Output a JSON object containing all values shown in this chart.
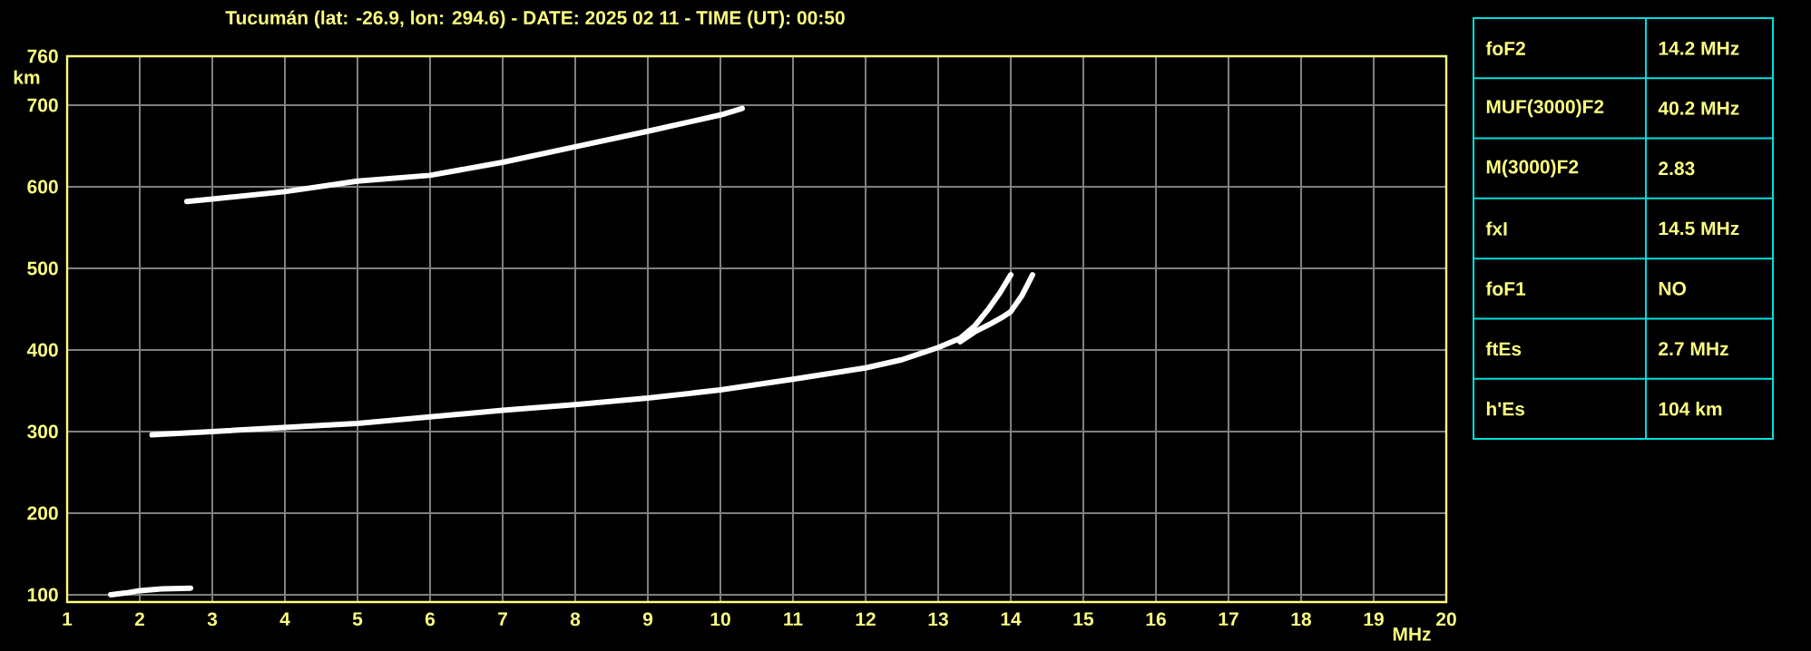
{
  "chart_data": [
    {
      "type": "line",
      "title": "Tucumán (lat: -26.9, lon: 294.6) - DATE: 2025 02 11 - TIME (UT): 00:50",
      "xlabel": "MHz",
      "ylabel": "km",
      "xlim": [
        1,
        20
      ],
      "ylim": [
        91,
        760
      ],
      "xticks": [
        1,
        2,
        3,
        4,
        5,
        6,
        7,
        8,
        9,
        10,
        11,
        12,
        13,
        14,
        15,
        16,
        17,
        18,
        19,
        20
      ],
      "yticks": [
        100,
        200,
        300,
        400,
        500,
        600,
        700,
        760
      ],
      "grid": true,
      "legend": false,
      "marker": "none",
      "line_style": "solid",
      "series": [
        {
          "color": "#ffffff",
          "x": [
            2.17,
            3,
            4,
            5,
            6,
            7,
            8,
            9,
            10,
            11,
            12,
            12.5,
            13,
            13.3,
            13.5,
            13.7,
            13.85,
            14.0
          ],
          "values": [
            296,
            300,
            305,
            310,
            318,
            326,
            333,
            341,
            351,
            364,
            378,
            388,
            403,
            414,
            429,
            451,
            470,
            492
          ]
        },
        {
          "color": "#ffffff",
          "x": [
            13.3,
            13.5,
            13.7,
            13.9,
            14.0,
            14.15,
            14.3
          ],
          "values": [
            410,
            422,
            431,
            441,
            447,
            466,
            492
          ]
        },
        {
          "color": "#ffffff",
          "x": [
            2.65,
            3,
            4,
            5,
            6,
            7,
            8,
            9,
            10,
            10.3
          ],
          "values": [
            582,
            585,
            594,
            607,
            614,
            630,
            649,
            668,
            688,
            696
          ]
        },
        {
          "color": "#ffffff",
          "x": [
            1.6,
            1.8,
            2.0,
            2.3,
            2.7
          ],
          "values": [
            100,
            102,
            105,
            107,
            108
          ]
        }
      ]
    },
    {
      "type": "other",
      "categories": [
        "foF2",
        "MUF(3000)F2",
        "M(3000)F2",
        "fxI",
        "foF1",
        "ftEs",
        "h'Es"
      ],
      "value_labels": [
        "14.2 MHz",
        "40.2 MHz",
        "2.83",
        "14.5 MHz",
        "NO",
        "2.7 MHz",
        "104 km"
      ],
      "color": "#00e0e0"
    }
  ]
}
